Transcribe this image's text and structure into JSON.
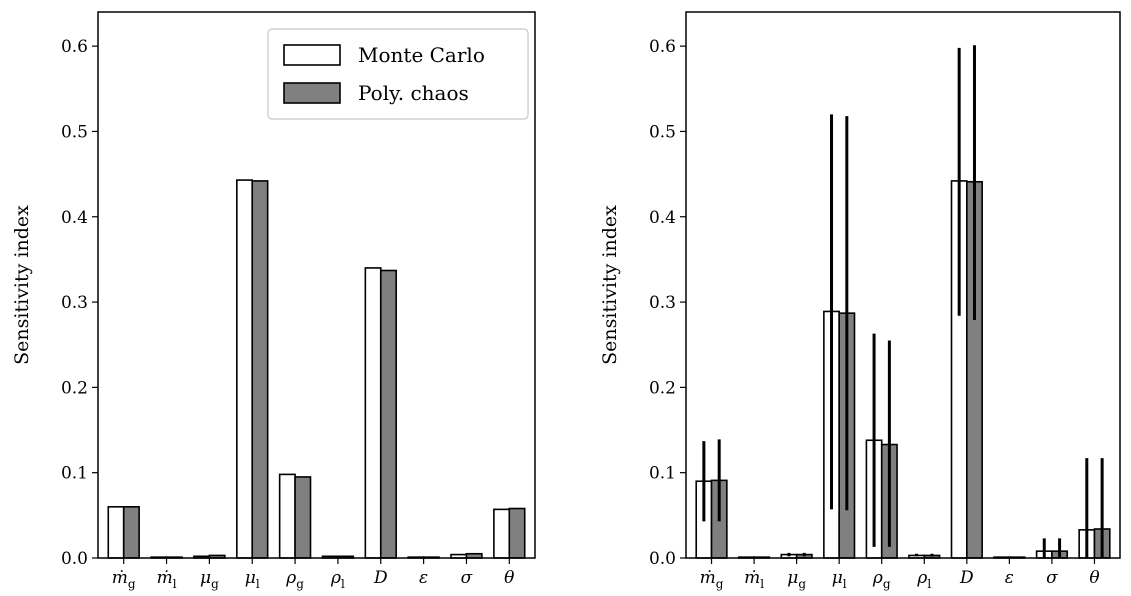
{
  "chart_data": [
    {
      "type": "bar",
      "ylabel": "Sensitivity index",
      "ylim": [
        0,
        0.64
      ],
      "yticks": [
        "0.0",
        "0.1",
        "0.2",
        "0.3",
        "0.4",
        "0.5",
        "0.6"
      ],
      "categories": [
        {
          "base": "ṁ",
          "sub": "g"
        },
        {
          "base": "ṁ",
          "sub": "l"
        },
        {
          "base": "μ",
          "sub": "g"
        },
        {
          "base": "μ",
          "sub": "l"
        },
        {
          "base": "ρ",
          "sub": "g"
        },
        {
          "base": "ρ",
          "sub": "l"
        },
        {
          "base": "D",
          "sub": ""
        },
        {
          "base": "ε",
          "sub": ""
        },
        {
          "base": "σ",
          "sub": ""
        },
        {
          "base": "θ",
          "sub": ""
        }
      ],
      "legend": {
        "position": "top-right"
      },
      "series": [
        {
          "name": "Monte Carlo",
          "color": "#ffffff",
          "values": [
            0.06,
            0.001,
            0.002,
            0.443,
            0.098,
            0.002,
            0.34,
            0.001,
            0.004,
            0.057
          ]
        },
        {
          "name": "Poly. chaos",
          "color": "#808080",
          "values": [
            0.06,
            0.001,
            0.003,
            0.442,
            0.095,
            0.002,
            0.337,
            0.001,
            0.005,
            0.058
          ]
        }
      ]
    },
    {
      "type": "bar",
      "ylabel": "Sensitivity index",
      "ylim": [
        0,
        0.64
      ],
      "yticks": [
        "0.0",
        "0.1",
        "0.2",
        "0.3",
        "0.4",
        "0.5",
        "0.6"
      ],
      "categories": [
        {
          "base": "ṁ",
          "sub": "g"
        },
        {
          "base": "ṁ",
          "sub": "l"
        },
        {
          "base": "μ",
          "sub": "g"
        },
        {
          "base": "μ",
          "sub": "l"
        },
        {
          "base": "ρ",
          "sub": "g"
        },
        {
          "base": "ρ",
          "sub": "l"
        },
        {
          "base": "D",
          "sub": ""
        },
        {
          "base": "ε",
          "sub": ""
        },
        {
          "base": "σ",
          "sub": ""
        },
        {
          "base": "θ",
          "sub": ""
        }
      ],
      "series": [
        {
          "name": "Monte Carlo",
          "color": "#ffffff",
          "values": [
            0.09,
            0.001,
            0.004,
            0.289,
            0.138,
            0.003,
            0.442,
            0.001,
            0.008,
            0.033
          ],
          "errors": [
            [
              0.043,
              0.137
            ],
            null,
            [
              0.002,
              0.006
            ],
            [
              0.057,
              0.52
            ],
            [
              0.013,
              0.263
            ],
            [
              0.002,
              0.005
            ],
            [
              0.284,
              0.598
            ],
            null,
            [
              0.0,
              0.023
            ],
            [
              0.0,
              0.117
            ]
          ]
        },
        {
          "name": "Poly. chaos",
          "color": "#808080",
          "values": [
            0.091,
            0.001,
            0.004,
            0.287,
            0.133,
            0.003,
            0.441,
            0.001,
            0.008,
            0.034
          ],
          "errors": [
            [
              0.043,
              0.139
            ],
            null,
            [
              0.002,
              0.006
            ],
            [
              0.056,
              0.518
            ],
            [
              0.013,
              0.255
            ],
            [
              0.002,
              0.005
            ],
            [
              0.279,
              0.601
            ],
            null,
            [
              0.0,
              0.023
            ],
            [
              0.0,
              0.117
            ]
          ]
        }
      ]
    }
  ]
}
